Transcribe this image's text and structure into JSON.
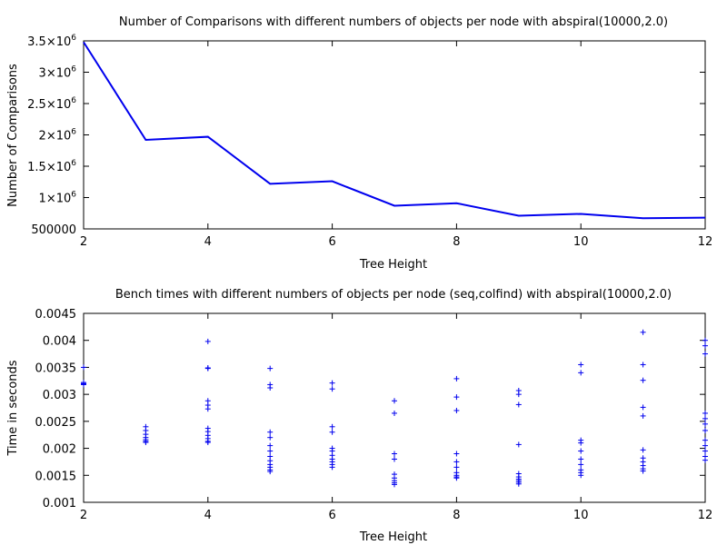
{
  "chart_data": [
    {
      "type": "line",
      "title": "Number of Comparisons with different numbers of objects per node with abspiral(10000,2.0)",
      "xlabel": "Tree Height",
      "ylabel": "Number of Comparisons",
      "xlim": [
        2,
        12
      ],
      "ylim": [
        500000,
        3500000
      ],
      "x_ticks": [
        "2",
        "4",
        "6",
        "8",
        "10",
        "12"
      ],
      "y_ticks": [
        {
          "mantissa": "3.5×10",
          "exp": "6"
        },
        {
          "mantissa": "3×10",
          "exp": "6"
        },
        {
          "mantissa": "2.5×10",
          "exp": "6"
        },
        {
          "mantissa": "2×10",
          "exp": "6"
        },
        {
          "mantissa": "1.5×10",
          "exp": "6"
        },
        {
          "mantissa": "1×10",
          "exp": "6"
        },
        {
          "mantissa": "500000",
          "exp": ""
        }
      ],
      "color": "#0000ee",
      "grid": false,
      "x": [
        2,
        3,
        4,
        5,
        6,
        7,
        8,
        9,
        10,
        11,
        12
      ],
      "values": [
        3480000,
        1920000,
        1970000,
        1220000,
        1260000,
        870000,
        910000,
        710000,
        740000,
        670000,
        680000
      ]
    },
    {
      "type": "scatter",
      "title": "Bench times with different numbers of objects per node (seq,colfind) with abspiral(10000,2.0)",
      "xlabel": "Tree Height",
      "ylabel": "Time in seconds",
      "xlim": [
        2,
        12
      ],
      "ylim": [
        0.001,
        0.0045
      ],
      "x_ticks": [
        "2",
        "4",
        "6",
        "8",
        "10",
        "12"
      ],
      "y_ticks": [
        "0.0045",
        "0.004",
        "0.0035",
        "0.003",
        "0.0025",
        "0.002",
        "0.0015",
        "0.001"
      ],
      "color": "#0000ee",
      "grid": false,
      "points": [
        [
          2,
          0.0035
        ],
        [
          2,
          0.00322
        ],
        [
          2,
          0.0032
        ],
        [
          2,
          0.00319
        ],
        [
          2,
          0.00318
        ],
        [
          3,
          0.0024
        ],
        [
          3,
          0.00233
        ],
        [
          3,
          0.00226
        ],
        [
          3,
          0.0022
        ],
        [
          3,
          0.00216
        ],
        [
          3,
          0.00213
        ],
        [
          3,
          0.00211
        ],
        [
          4,
          0.00398
        ],
        [
          4,
          0.00349
        ],
        [
          4,
          0.00348
        ],
        [
          4,
          0.00288
        ],
        [
          4,
          0.0028
        ],
        [
          4,
          0.00273
        ],
        [
          4,
          0.00237
        ],
        [
          4,
          0.00231
        ],
        [
          4,
          0.00224
        ],
        [
          4,
          0.00218
        ],
        [
          4,
          0.00213
        ],
        [
          4,
          0.00211
        ],
        [
          5,
          0.00348
        ],
        [
          5,
          0.00318
        ],
        [
          5,
          0.00312
        ],
        [
          5,
          0.0023
        ],
        [
          5,
          0.0022
        ],
        [
          5,
          0.00205
        ],
        [
          5,
          0.00195
        ],
        [
          5,
          0.00185
        ],
        [
          5,
          0.00177
        ],
        [
          5,
          0.0017
        ],
        [
          5,
          0.00165
        ],
        [
          5,
          0.0016
        ],
        [
          5,
          0.00157
        ],
        [
          6,
          0.00321
        ],
        [
          6,
          0.0031
        ],
        [
          6,
          0.0024
        ],
        [
          6,
          0.0023
        ],
        [
          6,
          0.002
        ],
        [
          6,
          0.00195
        ],
        [
          6,
          0.00187
        ],
        [
          6,
          0.0018
        ],
        [
          6,
          0.00175
        ],
        [
          6,
          0.0017
        ],
        [
          6,
          0.00165
        ],
        [
          7,
          0.00288
        ],
        [
          7,
          0.00265
        ],
        [
          7,
          0.0019
        ],
        [
          7,
          0.0018
        ],
        [
          7,
          0.00152
        ],
        [
          7,
          0.00145
        ],
        [
          7,
          0.0014
        ],
        [
          7,
          0.00136
        ],
        [
          7,
          0.00133
        ],
        [
          8,
          0.00329
        ],
        [
          8,
          0.00295
        ],
        [
          8,
          0.0027
        ],
        [
          8,
          0.0019
        ],
        [
          8,
          0.00175
        ],
        [
          8,
          0.00165
        ],
        [
          8,
          0.00155
        ],
        [
          8,
          0.0015
        ],
        [
          8,
          0.00147
        ],
        [
          8,
          0.00145
        ],
        [
          9,
          0.00307
        ],
        [
          9,
          0.003
        ],
        [
          9,
          0.00281
        ],
        [
          9,
          0.00207
        ],
        [
          9,
          0.00153
        ],
        [
          9,
          0.00147
        ],
        [
          9,
          0.00143
        ],
        [
          9,
          0.0014
        ],
        [
          9,
          0.00137
        ],
        [
          9,
          0.00134
        ],
        [
          10,
          0.00355
        ],
        [
          10,
          0.0034
        ],
        [
          10,
          0.00215
        ],
        [
          10,
          0.0021
        ],
        [
          10,
          0.00195
        ],
        [
          10,
          0.0018
        ],
        [
          10,
          0.0017
        ],
        [
          10,
          0.0016
        ],
        [
          10,
          0.00155
        ],
        [
          10,
          0.0015
        ],
        [
          11,
          0.00415
        ],
        [
          11,
          0.00355
        ],
        [
          11,
          0.00326
        ],
        [
          11,
          0.00276
        ],
        [
          11,
          0.0026
        ],
        [
          11,
          0.00197
        ],
        [
          11,
          0.00182
        ],
        [
          11,
          0.00175
        ],
        [
          11,
          0.00168
        ],
        [
          11,
          0.00162
        ],
        [
          11,
          0.00158
        ],
        [
          12,
          0.004
        ],
        [
          12,
          0.0039
        ],
        [
          12,
          0.00375
        ],
        [
          12,
          0.00265
        ],
        [
          12,
          0.00255
        ],
        [
          12,
          0.00245
        ],
        [
          12,
          0.00233
        ],
        [
          12,
          0.00215
        ],
        [
          12,
          0.00205
        ],
        [
          12,
          0.00195
        ],
        [
          12,
          0.00185
        ],
        [
          12,
          0.00178
        ]
      ]
    }
  ]
}
